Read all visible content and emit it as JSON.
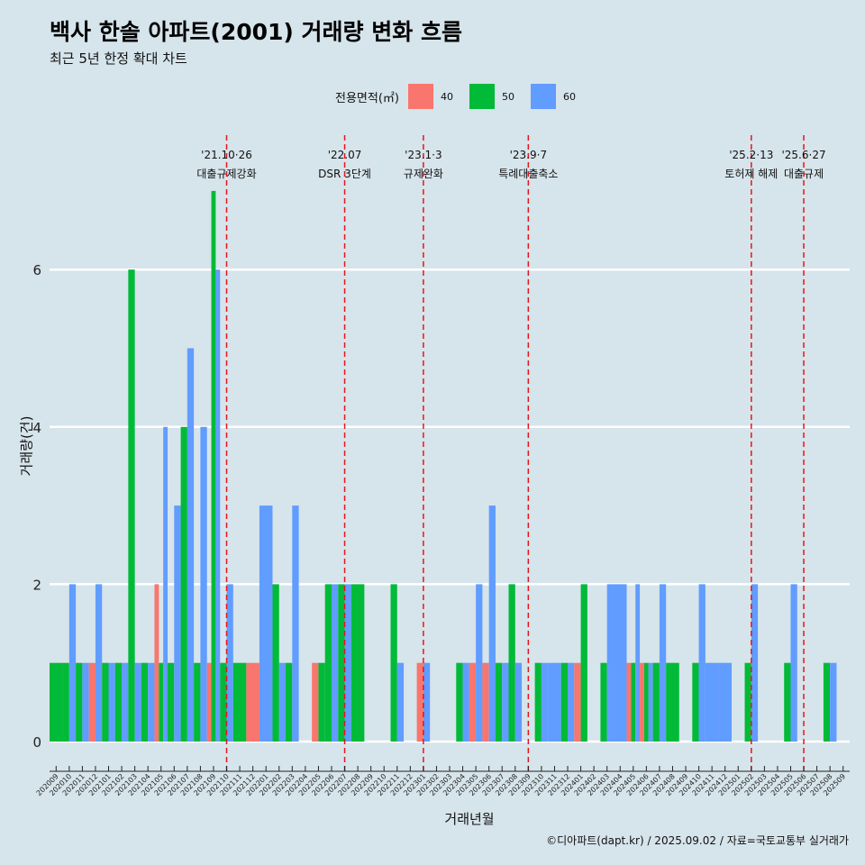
{
  "title": "백사 한솔 아파트(2001) 거래량 변화 흐름",
  "subtitle": "최근 5년 한정 확대 차트",
  "caption": "©디아파트(dapt.kr) / 2025.09.02 / 자료=국토교통부 실거래가",
  "colors": {
    "s40": "#f8766d",
    "s50": "#00ba38",
    "s60": "#619cff",
    "grid": "#ffffff",
    "vline": "#e8141c",
    "background": "#d6e4eb"
  },
  "chart_data": {
    "type": "bar",
    "title": "백사 한솔 아파트(2001) 거래량 변화 흐름",
    "xlabel": "거래년월",
    "ylabel": "거래량(건)",
    "ylim": [
      0,
      7
    ],
    "yticks": [
      0,
      2,
      4,
      6
    ],
    "grid": "horizontal",
    "legend_title": "전용면적(㎡)",
    "legend_position": "top",
    "categories": [
      "202009",
      "202010",
      "202011",
      "202012",
      "202101",
      "202102",
      "202103",
      "202104",
      "202105",
      "202106",
      "202107",
      "202108",
      "202109",
      "202110",
      "202111",
      "202112",
      "202201",
      "202202",
      "202203",
      "202204",
      "202205",
      "202206",
      "202207",
      "202208",
      "202209",
      "202210",
      "202211",
      "202212",
      "202301",
      "202302",
      "202303",
      "202304",
      "202305",
      "202306",
      "202307",
      "202308",
      "202309",
      "202310",
      "202311",
      "202312",
      "202401",
      "202402",
      "202403",
      "202404",
      "202405",
      "202406",
      "202407",
      "202408",
      "202409",
      "202410",
      "202411",
      "202412",
      "202501",
      "202502",
      "202503",
      "202504",
      "202505",
      "202506",
      "202507",
      "202508",
      "202509"
    ],
    "series": [
      {
        "name": "40",
        "values": [
          0,
          0,
          0,
          1,
          0,
          0,
          0,
          0,
          2,
          0,
          0,
          0,
          1,
          0,
          0,
          1,
          0,
          0,
          0,
          0,
          1,
          0,
          0,
          0,
          0,
          0,
          0,
          0,
          1,
          0,
          0,
          0,
          1,
          1,
          0,
          0,
          0,
          0,
          0,
          0,
          1,
          0,
          0,
          0,
          1,
          1,
          0,
          0,
          0,
          0,
          0,
          0,
          0,
          0,
          0,
          0,
          0,
          0,
          0,
          0,
          0
        ]
      },
      {
        "name": "50",
        "values": [
          1,
          1,
          1,
          0,
          1,
          1,
          6,
          1,
          1,
          1,
          4,
          1,
          7,
          1,
          1,
          0,
          0,
          2,
          1,
          0,
          1,
          2,
          2,
          2,
          0,
          0,
          2,
          0,
          0,
          0,
          0,
          1,
          0,
          0,
          1,
          2,
          0,
          1,
          0,
          1,
          2,
          0,
          1,
          0,
          1,
          1,
          1,
          1,
          0,
          1,
          0,
          0,
          0,
          1,
          0,
          0,
          1,
          0,
          0,
          1,
          0
        ]
      },
      {
        "name": "60",
        "values": [
          0,
          2,
          1,
          2,
          1,
          1,
          1,
          1,
          4,
          3,
          5,
          4,
          6,
          2,
          0,
          0,
          3,
          1,
          3,
          0,
          0,
          2,
          2,
          0,
          0,
          0,
          1,
          0,
          1,
          0,
          0,
          1,
          2,
          3,
          1,
          1,
          0,
          1,
          1,
          1,
          0,
          0,
          2,
          2,
          2,
          1,
          2,
          0,
          0,
          2,
          1,
          1,
          0,
          2,
          0,
          0,
          2,
          0,
          0,
          1,
          0
        ]
      }
    ],
    "events": [
      {
        "date": "'21.10·26",
        "label": "대출규제강화",
        "x": "202110"
      },
      {
        "date": "'22.07",
        "label": "DSR 3단계",
        "x": "202207"
      },
      {
        "date": "'23.1·3",
        "label": "규제완화",
        "x": "202301"
      },
      {
        "date": "'23.9·7",
        "label": "특례대출축소",
        "x": "202309"
      },
      {
        "date": "'25.2·13",
        "label": "토허제 해제",
        "x": "202502"
      },
      {
        "date": "'25.6·27",
        "label": "대출규제",
        "x": "202506"
      }
    ]
  }
}
